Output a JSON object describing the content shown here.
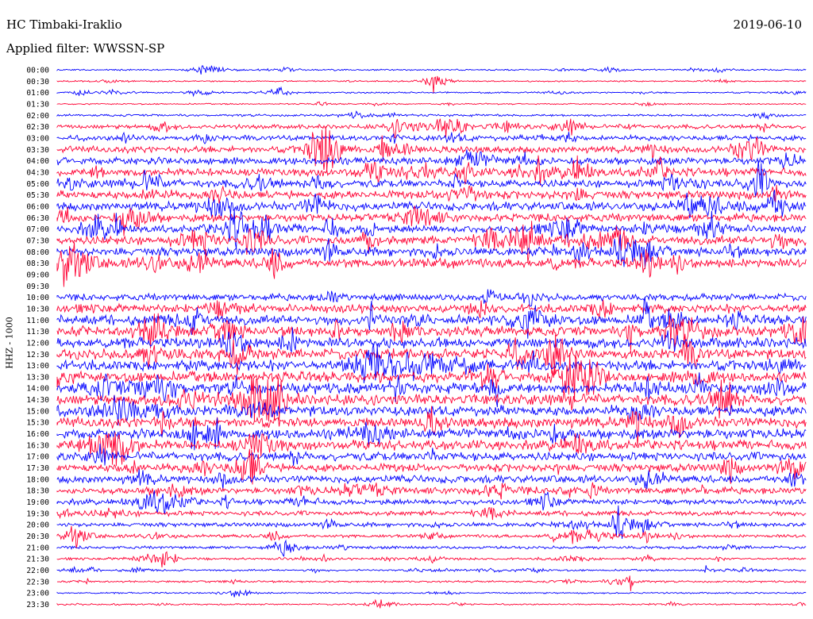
{
  "header": {
    "station": "HC Timbaki-Iraklio",
    "date": "2019-06-10",
    "filter": "Applied filter: WWSSN-SP"
  },
  "chart_data": {
    "type": "line",
    "kind": "seismogram-helicorder",
    "ylabel": "HHZ - 1000",
    "rows": [
      "00:00",
      "00:30",
      "01:00",
      "01:30",
      "02:00",
      "02:30",
      "03:00",
      "03:30",
      "04:00",
      "04:30",
      "05:00",
      "05:30",
      "06:00",
      "06:30",
      "07:00",
      "07:30",
      "08:00",
      "08:30",
      "09:00",
      "09:30",
      "10:00",
      "10:30",
      "11:00",
      "11:30",
      "12:00",
      "12:30",
      "13:00",
      "13:30",
      "14:00",
      "14:30",
      "15:00",
      "15:30",
      "16:00",
      "16:30",
      "17:00",
      "17:30",
      "18:00",
      "18:30",
      "19:00",
      "19:30",
      "20:00",
      "20:30",
      "21:00",
      "21:30",
      "22:00",
      "22:30",
      "23:00",
      "23:30"
    ],
    "row_colors": [
      "#0000ff",
      "#ff0033"
    ],
    "relative_amplitude": [
      0.08,
      0.07,
      0.08,
      0.07,
      0.12,
      0.22,
      0.28,
      0.35,
      0.4,
      0.42,
      0.4,
      0.42,
      0.45,
      0.42,
      0.42,
      0.45,
      0.45,
      0.5,
      0.0,
      0.0,
      0.35,
      0.45,
      0.5,
      0.52,
      0.55,
      0.55,
      0.55,
      0.55,
      0.55,
      0.55,
      0.55,
      0.55,
      0.55,
      0.5,
      0.45,
      0.42,
      0.4,
      0.35,
      0.3,
      0.25,
      0.22,
      0.18,
      0.15,
      0.12,
      0.1,
      0.1,
      0.08,
      0.08
    ],
    "grid": false
  }
}
